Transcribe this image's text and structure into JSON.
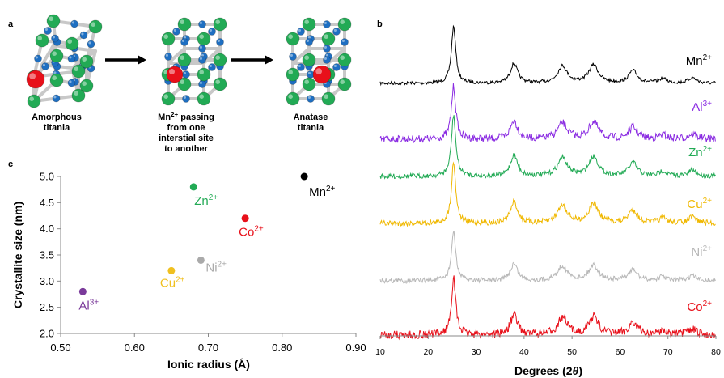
{
  "panels": {
    "a": "a",
    "b": "b",
    "c": "c"
  },
  "panel_a": {
    "captions": [
      [
        "Amorphous",
        "titania"
      ],
      [
        "Mn",
        "passing",
        "from one",
        "interstial site",
        "to another"
      ],
      [
        "Anatase",
        "titania"
      ]
    ],
    "caption2_sup": "2+",
    "colors": {
      "ti": "#22aa55",
      "o": "#1e6fc2",
      "ion": "#e8101a",
      "bond": "#c8c8c8"
    }
  },
  "chart_data": [
    {
      "type": "scatter",
      "title": "",
      "xlabel": "Ionic radius (Å)",
      "ylabel": "Crystallite size (nm)",
      "xlim": [
        0.5,
        0.9
      ],
      "ylim": [
        2.0,
        5.0
      ],
      "xticks": [
        "0.50",
        "0.60",
        "0.70",
        "0.80",
        "0.90"
      ],
      "yticks": [
        "2.0",
        "2.5",
        "3.0",
        "3.5",
        "4.0",
        "4.5",
        "5.0"
      ],
      "grid": false,
      "points": [
        {
          "ion": "Al",
          "charge": "3+",
          "x": 0.53,
          "y": 2.8,
          "color": "#7a3a9a"
        },
        {
          "ion": "Cu",
          "charge": "2+",
          "x": 0.65,
          "y": 3.2,
          "color": "#f0c020"
        },
        {
          "ion": "Zn",
          "charge": "2+",
          "x": 0.68,
          "y": 4.8,
          "color": "#22aa55"
        },
        {
          "ion": "Ni",
          "charge": "2+",
          "x": 0.69,
          "y": 3.4,
          "color": "#aaaaaa"
        },
        {
          "ion": "Co",
          "charge": "2+",
          "x": 0.75,
          "y": 4.2,
          "color": "#e8101a"
        },
        {
          "ion": "Mn",
          "charge": "2+",
          "x": 0.83,
          "y": 5.0,
          "color": "#000000"
        }
      ]
    },
    {
      "type": "line",
      "title": "",
      "xlabel": "Degrees (2θ)",
      "ylabel": "",
      "xlim": [
        10,
        80
      ],
      "xticks": [
        "10",
        "20",
        "30",
        "40",
        "50",
        "60",
        "70",
        "80"
      ],
      "peaks_2theta": [
        25.3,
        37.9,
        48.0,
        54.5,
        62.7,
        68.9,
        75.1
      ],
      "series": [
        {
          "name": "Mn",
          "charge": "2+",
          "color": "#000000"
        },
        {
          "name": "Al",
          "charge": "3+",
          "color": "#8a2be2"
        },
        {
          "name": "Zn",
          "charge": "2+",
          "color": "#22aa55"
        },
        {
          "name": "Cu",
          "charge": "2+",
          "color": "#f0b800"
        },
        {
          "name": "Ni",
          "charge": "2+",
          "color": "#b8b8b8"
        },
        {
          "name": "Co",
          "charge": "2+",
          "color": "#e8101a"
        }
      ]
    }
  ]
}
